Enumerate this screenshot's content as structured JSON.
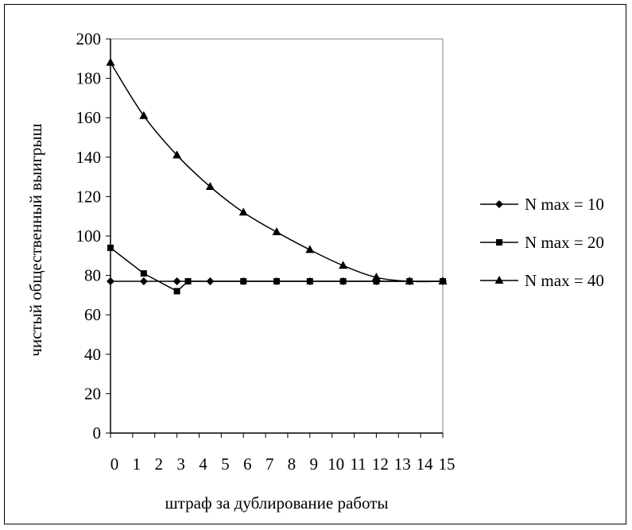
{
  "chart_data": {
    "type": "line",
    "title": "",
    "xlabel": "штраф за дублирование работы",
    "ylabel": "чистый общественный выигрыш",
    "x_tick_labels": [
      "0",
      "1",
      "2",
      "3",
      "4",
      "5",
      "6",
      "7",
      "8",
      "9",
      "10",
      "11",
      "12",
      "13",
      "14",
      "15"
    ],
    "x_range": [
      0,
      15
    ],
    "y_ticks": [
      0,
      20,
      40,
      60,
      80,
      100,
      120,
      140,
      160,
      180,
      200
    ],
    "ylim": [
      0,
      200
    ],
    "grid": false,
    "legend_position": "right",
    "series": [
      {
        "name": "N max = 10",
        "marker": "diamond",
        "x": [
          0,
          1.5,
          3,
          4.5,
          6,
          7.5,
          9,
          10.5,
          12,
          13.5,
          15
        ],
        "y": [
          77,
          77,
          77,
          77,
          77,
          77,
          77,
          77,
          77,
          77,
          77
        ]
      },
      {
        "name": "N max = 20",
        "marker": "square",
        "x": [
          0,
          1.5,
          3,
          3.5,
          6,
          7.5,
          9,
          10.5,
          12,
          13.5,
          15
        ],
        "y": [
          94,
          81,
          72,
          77,
          77,
          77,
          77,
          77,
          77,
          77,
          77
        ]
      },
      {
        "name": "N max = 40",
        "marker": "triangle",
        "x": [
          0,
          1.5,
          3,
          4.5,
          6,
          7.5,
          9,
          10.5,
          12,
          13.5,
          15
        ],
        "y": [
          188,
          161,
          141,
          125,
          112,
          102,
          93,
          85,
          79,
          77,
          77
        ]
      }
    ]
  }
}
